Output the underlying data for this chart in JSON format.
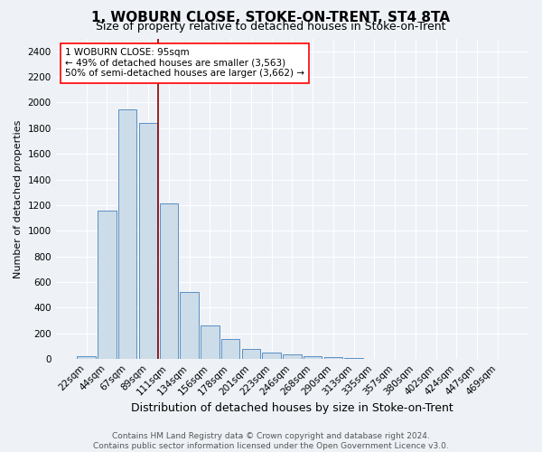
{
  "title": "1, WOBURN CLOSE, STOKE-ON-TRENT, ST4 8TA",
  "subtitle": "Size of property relative to detached houses in Stoke-on-Trent",
  "xlabel": "Distribution of detached houses by size in Stoke-on-Trent",
  "ylabel": "Number of detached properties",
  "bar_labels": [
    "22sqm",
    "44sqm",
    "67sqm",
    "89sqm",
    "111sqm",
    "134sqm",
    "156sqm",
    "178sqm",
    "201sqm",
    "223sqm",
    "246sqm",
    "268sqm",
    "290sqm",
    "313sqm",
    "335sqm",
    "357sqm",
    "380sqm",
    "402sqm",
    "424sqm",
    "447sqm",
    "469sqm"
  ],
  "bar_values": [
    25,
    1155,
    1950,
    1840,
    1215,
    525,
    265,
    155,
    80,
    50,
    40,
    25,
    15,
    12,
    5,
    4,
    3,
    3,
    2,
    2,
    2
  ],
  "bar_color": "#ccdce8",
  "bar_edge_color": "#5b8fc4",
  "red_line_x": 3.5,
  "annotation_title": "1 WOBURN CLOSE: 95sqm",
  "annotation_line1": "← 49% of detached houses are smaller (3,563)",
  "annotation_line2": "50% of semi-detached houses are larger (3,662) →",
  "ylim": [
    0,
    2500
  ],
  "yticks": [
    0,
    200,
    400,
    600,
    800,
    1000,
    1200,
    1400,
    1600,
    1800,
    2000,
    2200,
    2400
  ],
  "footer1": "Contains HM Land Registry data © Crown copyright and database right 2024.",
  "footer2": "Contains public sector information licensed under the Open Government Licence v3.0.",
  "background_color": "#eef2f7",
  "plot_bg_color": "#eef2f7",
  "grid_color": "#ffffff",
  "title_fontsize": 11,
  "subtitle_fontsize": 9,
  "xlabel_fontsize": 9,
  "ylabel_fontsize": 8,
  "tick_fontsize": 7.5,
  "footer_fontsize": 6.5
}
